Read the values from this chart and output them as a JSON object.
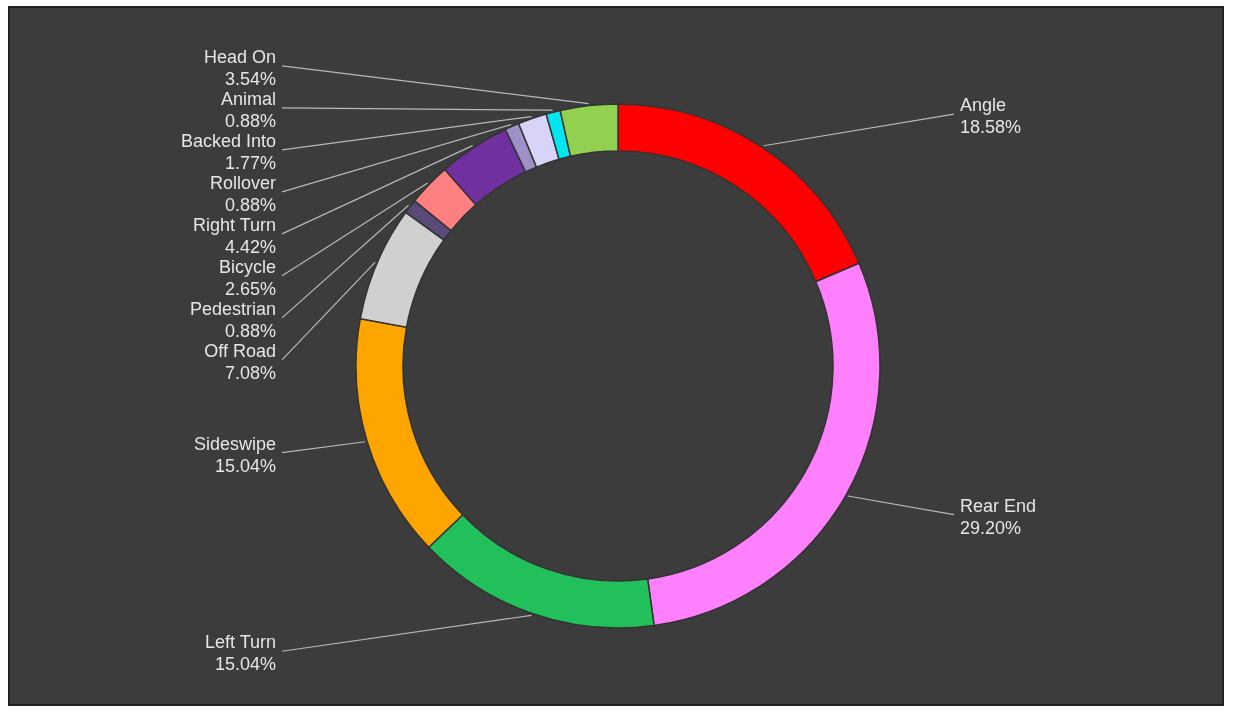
{
  "chart_data": {
    "type": "donut",
    "categories": [
      "Angle",
      "Rear End",
      "Left Turn",
      "Sideswipe",
      "Off Road",
      "Pedestrian",
      "Bicycle",
      "Right Turn",
      "Rollover",
      "Backed Into",
      "Animal",
      "Head On"
    ],
    "values": [
      18.58,
      29.2,
      15.04,
      15.04,
      7.08,
      0.88,
      2.65,
      4.42,
      0.88,
      1.77,
      0.88,
      3.54
    ],
    "value_labels": [
      "18.58%",
      "29.20%",
      "15.04%",
      "15.04%",
      "7.08%",
      "0.88%",
      "2.65%",
      "4.42%",
      "0.88%",
      "1.77%",
      "0.88%",
      "3.54%"
    ],
    "colors": [
      "#ff0000",
      "#ff80ff",
      "#22c05a",
      "#ffa500",
      "#d0d0d0",
      "#5a4a7a",
      "#ff8080",
      "#7030a0",
      "#a090c8",
      "#d8d4f8",
      "#00e5ee",
      "#92d050"
    ]
  }
}
